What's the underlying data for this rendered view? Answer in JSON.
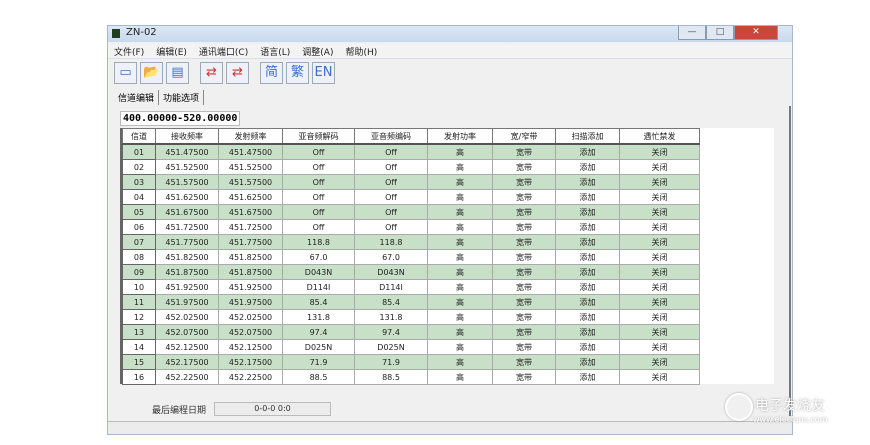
{
  "window": {
    "title": "ZN-02",
    "min": "—",
    "max": "□",
    "close": "✕"
  },
  "menu": [
    "文件(F)",
    "编辑(E)",
    "通讯端口(C)",
    "语言(L)",
    "调整(A)",
    "帮助(H)"
  ],
  "toolbar": {
    "new": "▭",
    "open": "📂",
    "save": "▤",
    "read": "⇄",
    "write": "⇄",
    "simplified": "简",
    "traditional": "繁",
    "english": "EN"
  },
  "tabs": [
    "信道编辑",
    "功能选项"
  ],
  "range": "400.00000-520.00000",
  "table": {
    "headers": [
      "信道",
      "接收频率",
      "发射频率",
      "亚音频解码",
      "亚音频编码",
      "发射功率",
      "宽/窄带",
      "扫描添加",
      "遇忙禁发"
    ],
    "rows": [
      [
        "01",
        "451.47500",
        "451.47500",
        "Off",
        "Off",
        "高",
        "宽带",
        "添加",
        "关闭"
      ],
      [
        "02",
        "451.52500",
        "451.52500",
        "Off",
        "Off",
        "高",
        "宽带",
        "添加",
        "关闭"
      ],
      [
        "03",
        "451.57500",
        "451.57500",
        "Off",
        "Off",
        "高",
        "宽带",
        "添加",
        "关闭"
      ],
      [
        "04",
        "451.62500",
        "451.62500",
        "Off",
        "Off",
        "高",
        "宽带",
        "添加",
        "关闭"
      ],
      [
        "05",
        "451.67500",
        "451.67500",
        "Off",
        "Off",
        "高",
        "宽带",
        "添加",
        "关闭"
      ],
      [
        "06",
        "451.72500",
        "451.72500",
        "Off",
        "Off",
        "高",
        "宽带",
        "添加",
        "关闭"
      ],
      [
        "07",
        "451.77500",
        "451.77500",
        "118.8",
        "118.8",
        "高",
        "宽带",
        "添加",
        "关闭"
      ],
      [
        "08",
        "451.82500",
        "451.82500",
        "67.0",
        "67.0",
        "高",
        "宽带",
        "添加",
        "关闭"
      ],
      [
        "09",
        "451.87500",
        "451.87500",
        "D043N",
        "D043N",
        "高",
        "宽带",
        "添加",
        "关闭"
      ],
      [
        "10",
        "451.92500",
        "451.92500",
        "D114I",
        "D114I",
        "高",
        "宽带",
        "添加",
        "关闭"
      ],
      [
        "11",
        "451.97500",
        "451.97500",
        "85.4",
        "85.4",
        "高",
        "宽带",
        "添加",
        "关闭"
      ],
      [
        "12",
        "452.02500",
        "452.02500",
        "131.8",
        "131.8",
        "高",
        "宽带",
        "添加",
        "关闭"
      ],
      [
        "13",
        "452.07500",
        "452.07500",
        "97.4",
        "97.4",
        "高",
        "宽带",
        "添加",
        "关闭"
      ],
      [
        "14",
        "452.12500",
        "452.12500",
        "D025N",
        "D025N",
        "高",
        "宽带",
        "添加",
        "关闭"
      ],
      [
        "15",
        "452.17500",
        "452.17500",
        "71.9",
        "71.9",
        "高",
        "宽带",
        "添加",
        "关闭"
      ],
      [
        "16",
        "452.22500",
        "452.22500",
        "88.5",
        "88.5",
        "高",
        "宽带",
        "添加",
        "关闭"
      ]
    ]
  },
  "footer": {
    "label": "最后编程日期",
    "value": "0-0-0   0:0"
  },
  "watermark": {
    "name": "电子发烧友",
    "url": "www.elecfans.com"
  },
  "colors": {
    "row_alt": "#c8e0c8",
    "close_button": "#c9473a"
  }
}
